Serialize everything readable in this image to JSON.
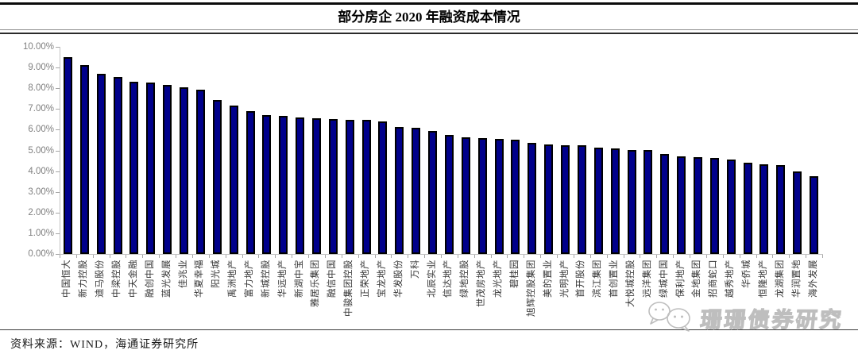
{
  "header": {
    "title": "部分房企 2020 年融资成本情况"
  },
  "footer": {
    "source_note": "资料来源：WIND，海通证券研究所"
  },
  "watermark": {
    "icon": "wechat-icon",
    "text": "珊珊债券研究"
  },
  "chart_data": {
    "type": "bar",
    "title": "部分房企 2020 年融资成本情况",
    "xlabel": "",
    "ylabel": "",
    "value_unit": "%",
    "ylim": [
      0,
      10
    ],
    "ytick_step": 1,
    "ytick_labels": [
      "0.00%",
      "1.00%",
      "2.00%",
      "3.00%",
      "4.00%",
      "5.00%",
      "6.00%",
      "7.00%",
      "8.00%",
      "9.00%",
      "10.00%"
    ],
    "grid": false,
    "legend_position": "none",
    "bar_color": "#00008B",
    "bar_border_color": "#000000",
    "axis_color": "#c3c3c3",
    "ytick_label_color": "#7f7f7f",
    "categories": [
      "中国恒大",
      "新力控股",
      "迪马股份",
      "中梁控股",
      "中天金融",
      "融创中国",
      "蓝光发展",
      "佳兆业",
      "华夏幸福",
      "阳光城",
      "禹洲地产",
      "富力地产",
      "新城控股",
      "华远地产",
      "新湖中宝",
      "雅居乐集团",
      "融信中国",
      "中骏集团控股",
      "正荣地产",
      "宝龙地产",
      "华发股份",
      "万科",
      "北辰实业",
      "信达地产",
      "绿地控股",
      "世茂房地产",
      "龙光地产",
      "碧桂园",
      "旭辉控股集团",
      "美的置业",
      "光明地产",
      "首开股份",
      "滨江集团",
      "首创置业",
      "大悦城控股",
      "远洋集团",
      "绿城中国",
      "保利地产",
      "金地集团",
      "招商蛇口",
      "越秀地产",
      "华侨城",
      "恒隆地产",
      "龙湖集团",
      "华润置地",
      "海外发展"
    ],
    "values": [
      9.5,
      9.1,
      8.7,
      8.55,
      8.32,
      8.28,
      8.15,
      8.05,
      7.95,
      7.45,
      7.18,
      6.88,
      6.7,
      6.65,
      6.6,
      6.57,
      6.53,
      6.48,
      6.46,
      6.41,
      6.14,
      6.08,
      5.92,
      5.76,
      5.62,
      5.58,
      5.56,
      5.5,
      5.35,
      5.28,
      5.25,
      5.23,
      5.15,
      5.09,
      5.03,
      5.02,
      4.83,
      4.7,
      4.68,
      4.62,
      4.55,
      4.4,
      4.33,
      4.3,
      4.0,
      3.75
    ]
  }
}
